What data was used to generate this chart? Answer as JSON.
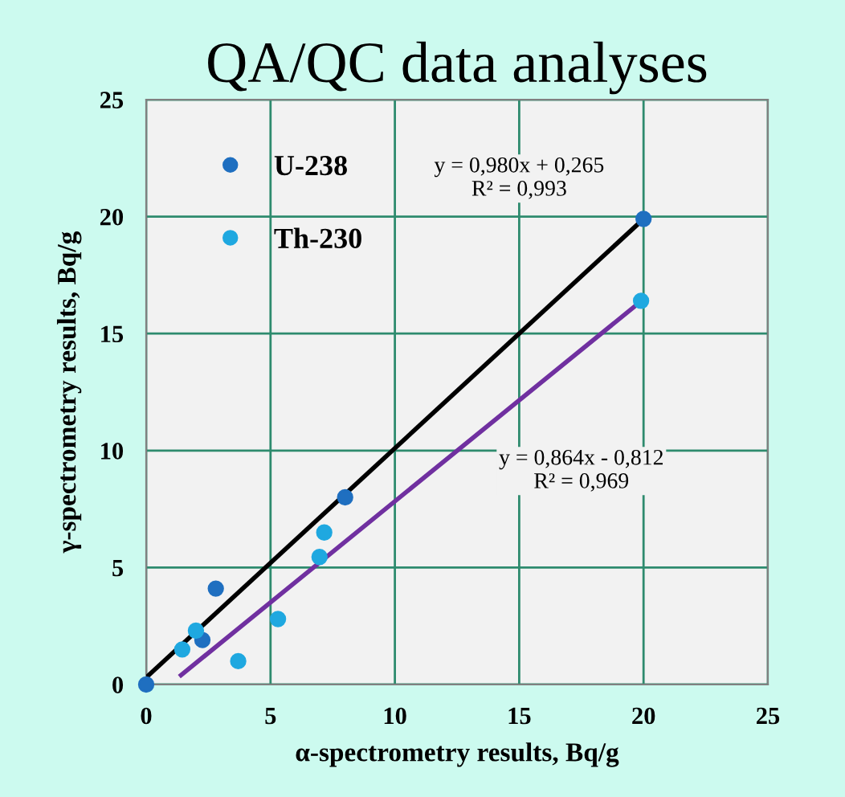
{
  "chart_data": {
    "type": "scatter",
    "title": "QA/QC data analyses",
    "xlabel": "α-spectrometry results, Bq/g",
    "ylabel": "γ-spectrometry results, Bq/g",
    "xlim": [
      0,
      25
    ],
    "ylim": [
      0,
      25
    ],
    "xticks": [
      0,
      5,
      10,
      15,
      20,
      25
    ],
    "yticks": [
      0,
      5,
      10,
      15,
      20,
      25
    ],
    "grid": true,
    "legend": "top left",
    "marker": "circle",
    "series": [
      {
        "name": "U-238",
        "color": "#1f6fc0",
        "x": [
          0,
          8.0,
          2.8,
          2.26,
          20
        ],
        "values": [
          0,
          8.0,
          4.1,
          1.9,
          19.9
        ]
      },
      {
        "name": "Th-230",
        "color": "#1fa8e0",
        "x": [
          7.16,
          6.97,
          5.3,
          2.0,
          1.45,
          3.7,
          19.9
        ],
        "values": [
          6.5,
          5.45,
          2.8,
          2.3,
          1.5,
          1.0,
          16.4
        ]
      },
      {
        "type": "line",
        "color": "#000000",
        "x": [
          0,
          20
        ],
        "values": [
          0.3,
          19.9
        ],
        "marker": "none"
      },
      {
        "type": "line",
        "color": "#7030a0",
        "x": [
          1.4,
          20
        ],
        "values": [
          0.4,
          16.47
        ],
        "marker": "none"
      }
    ],
    "annotations": [
      "y = 0,980x + 0,265\nR² = 0,993",
      "y = 0,864x - 0,812\nR² = 0,969"
    ]
  }
}
